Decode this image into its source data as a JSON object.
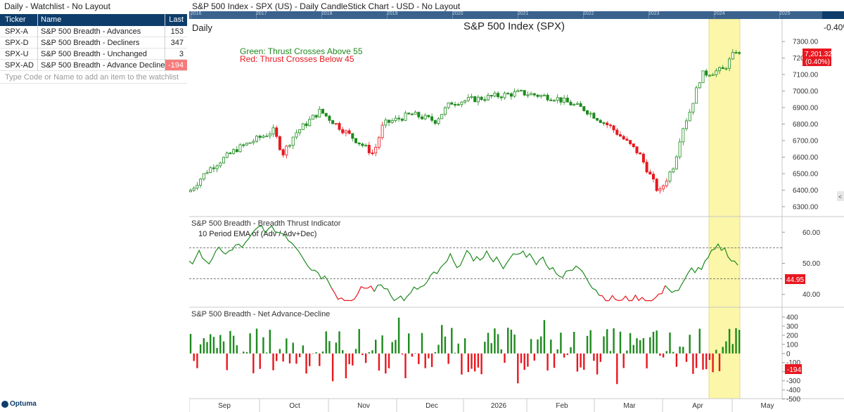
{
  "watchlist": {
    "title": "Daily - Watchlist - No Layout",
    "columns": {
      "ticker": "Ticker",
      "name": "Name",
      "last": "Last"
    },
    "rows": [
      {
        "ticker": "SPX-A",
        "name": "S&P 500 Breadth - Advances",
        "last": "153"
      },
      {
        "ticker": "SPX-D",
        "name": "S&P 500 Breadth - Decliners",
        "last": "347"
      },
      {
        "ticker": "SPX-U",
        "name": "S&P 500 Breadth - Unchanged",
        "last": "3"
      },
      {
        "ticker": "SPX-AD",
        "name": "S&P 500 Breadth - Advance Decline",
        "last": "-194",
        "negative": true
      }
    ],
    "add_placeholder": "Type Code or Name to add an item to the watchlist"
  },
  "logo": "Optuma",
  "chart_window": {
    "title": "S&P 500 Index - SPX (US) - Daily CandleStick Chart - USD - No Layout",
    "overview_years": [
      "2016",
      "2017",
      "2018",
      "2019",
      "2020",
      "2021",
      "2022",
      "2023",
      "2024",
      "2025",
      "2026"
    ],
    "periodicity": "Daily",
    "chart_title": "S&P 500 Index (SPX)",
    "change_pct": "-0.40%",
    "legend_green": "Green: Thrust Crosses Above 55",
    "legend_red": "Red: Thrust Crosses Below 45",
    "last_price": "7,201.32",
    "last_change": "(0.40%)",
    "scroll_arrow": "<",
    "breadth_title": "S&P 500 Breadth - Breadth Thrust Indicator",
    "breadth_sub": "10 Period EMA of (Adv / Adv+Dec)",
    "breadth_last": "44.95",
    "ad_title": "S&P 500 Breadth - Net Advance-Decline",
    "ad_last": "-194",
    "colors": {
      "up": "#1e8a1e",
      "down": "#e8171f",
      "highlight": "#fbf6a8",
      "header": "#0e3d6b"
    }
  },
  "chart_data": [
    {
      "type": "candlestick",
      "title": "S&P 500 Index (SPX)",
      "y_ticks": [
        "7300.00",
        "7200.00",
        "7100.00",
        "7000.00",
        "6900.00",
        "6800.00",
        "6700.00",
        "6600.00",
        "6500.00",
        "6400.00",
        "6300.00"
      ],
      "ylim": [
        6270,
        7330
      ],
      "x_ticks": [
        "Sep",
        "Oct",
        "Nov",
        "Dec",
        "2026",
        "Feb",
        "Mar",
        "Apr",
        "May"
      ],
      "key_points": [
        {
          "x": "Sep",
          "close": 6390
        },
        {
          "x": "Oct",
          "close": 6740
        },
        {
          "x": "Oct (mid)",
          "close": 6880
        },
        {
          "x": "Nov (low)",
          "close": 6560
        },
        {
          "x": "Dec",
          "close": 6860
        },
        {
          "x": "2026",
          "close": 6940
        },
        {
          "x": "Feb",
          "close": 6980
        },
        {
          "x": "Mar (low)",
          "close": 6340
        },
        {
          "x": "Apr",
          "close": 7100
        },
        {
          "x": "Apr (last)",
          "close": 7201.32
        }
      ],
      "last_value": 7201.32
    },
    {
      "type": "line",
      "title": "S&P 500 Breadth - Breadth Thrust Indicator",
      "y_ticks": [
        "60.00",
        "50.00",
        "40.00"
      ],
      "ylim": [
        37,
        63
      ],
      "reference_lines": [
        55,
        45
      ],
      "last_value": 44.95
    },
    {
      "type": "bar",
      "title": "S&P 500 Breadth - Net Advance-Decline",
      "y_ticks": [
        "400",
        "300",
        "200",
        "100",
        "0",
        "-100",
        "-200",
        "-300",
        "-400",
        "-500"
      ],
      "ylim": [
        -480,
        430
      ],
      "last_value": -194
    }
  ]
}
